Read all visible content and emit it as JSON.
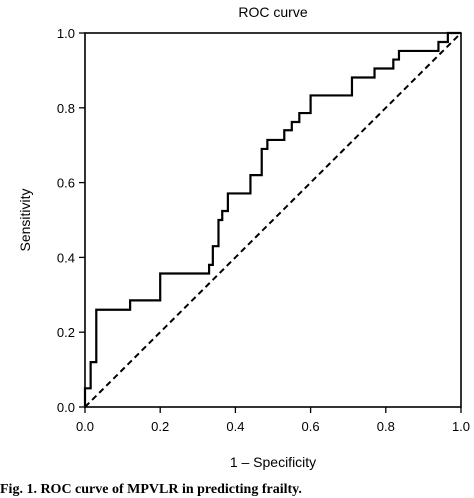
{
  "chart_data": {
    "type": "line",
    "title": "ROC curve",
    "xlabel": "1 – Specificity",
    "ylabel": "Sensitivity",
    "xlim": [
      0,
      1
    ],
    "ylim": [
      0,
      1
    ],
    "x_ticks": [
      "0.0",
      "0.2",
      "0.4",
      "0.6",
      "0.8",
      "1.0"
    ],
    "y_ticks": [
      "0.0",
      "0.2",
      "0.4",
      "0.6",
      "0.8",
      "1.0"
    ],
    "grid": false,
    "series": [
      {
        "style": "solid-step",
        "points": [
          [
            0.0,
            0.0
          ],
          [
            0.0,
            0.05
          ],
          [
            0.015,
            0.05
          ],
          [
            0.015,
            0.12
          ],
          [
            0.03,
            0.12
          ],
          [
            0.03,
            0.26
          ],
          [
            0.12,
            0.26
          ],
          [
            0.12,
            0.285
          ],
          [
            0.2,
            0.285
          ],
          [
            0.2,
            0.357
          ],
          [
            0.33,
            0.357
          ],
          [
            0.33,
            0.38
          ],
          [
            0.34,
            0.38
          ],
          [
            0.34,
            0.43
          ],
          [
            0.355,
            0.43
          ],
          [
            0.355,
            0.5
          ],
          [
            0.365,
            0.5
          ],
          [
            0.365,
            0.524
          ],
          [
            0.38,
            0.524
          ],
          [
            0.38,
            0.571
          ],
          [
            0.44,
            0.571
          ],
          [
            0.44,
            0.62
          ],
          [
            0.47,
            0.62
          ],
          [
            0.47,
            0.69
          ],
          [
            0.485,
            0.69
          ],
          [
            0.485,
            0.714
          ],
          [
            0.53,
            0.714
          ],
          [
            0.53,
            0.74
          ],
          [
            0.55,
            0.74
          ],
          [
            0.55,
            0.762
          ],
          [
            0.57,
            0.762
          ],
          [
            0.57,
            0.786
          ],
          [
            0.6,
            0.786
          ],
          [
            0.6,
            0.833
          ],
          [
            0.71,
            0.833
          ],
          [
            0.71,
            0.881
          ],
          [
            0.77,
            0.881
          ],
          [
            0.77,
            0.905
          ],
          [
            0.82,
            0.905
          ],
          [
            0.82,
            0.929
          ],
          [
            0.835,
            0.929
          ],
          [
            0.835,
            0.952
          ],
          [
            0.94,
            0.952
          ],
          [
            0.94,
            0.976
          ],
          [
            0.965,
            0.976
          ],
          [
            0.965,
            1.0
          ],
          [
            1.0,
            1.0
          ]
        ]
      },
      {
        "style": "dashed-diagonal",
        "points": [
          [
            0,
            0
          ],
          [
            1,
            1
          ]
        ]
      }
    ]
  },
  "caption": "Fig. 1. ROC curve of MPVLR in predicting frailty."
}
